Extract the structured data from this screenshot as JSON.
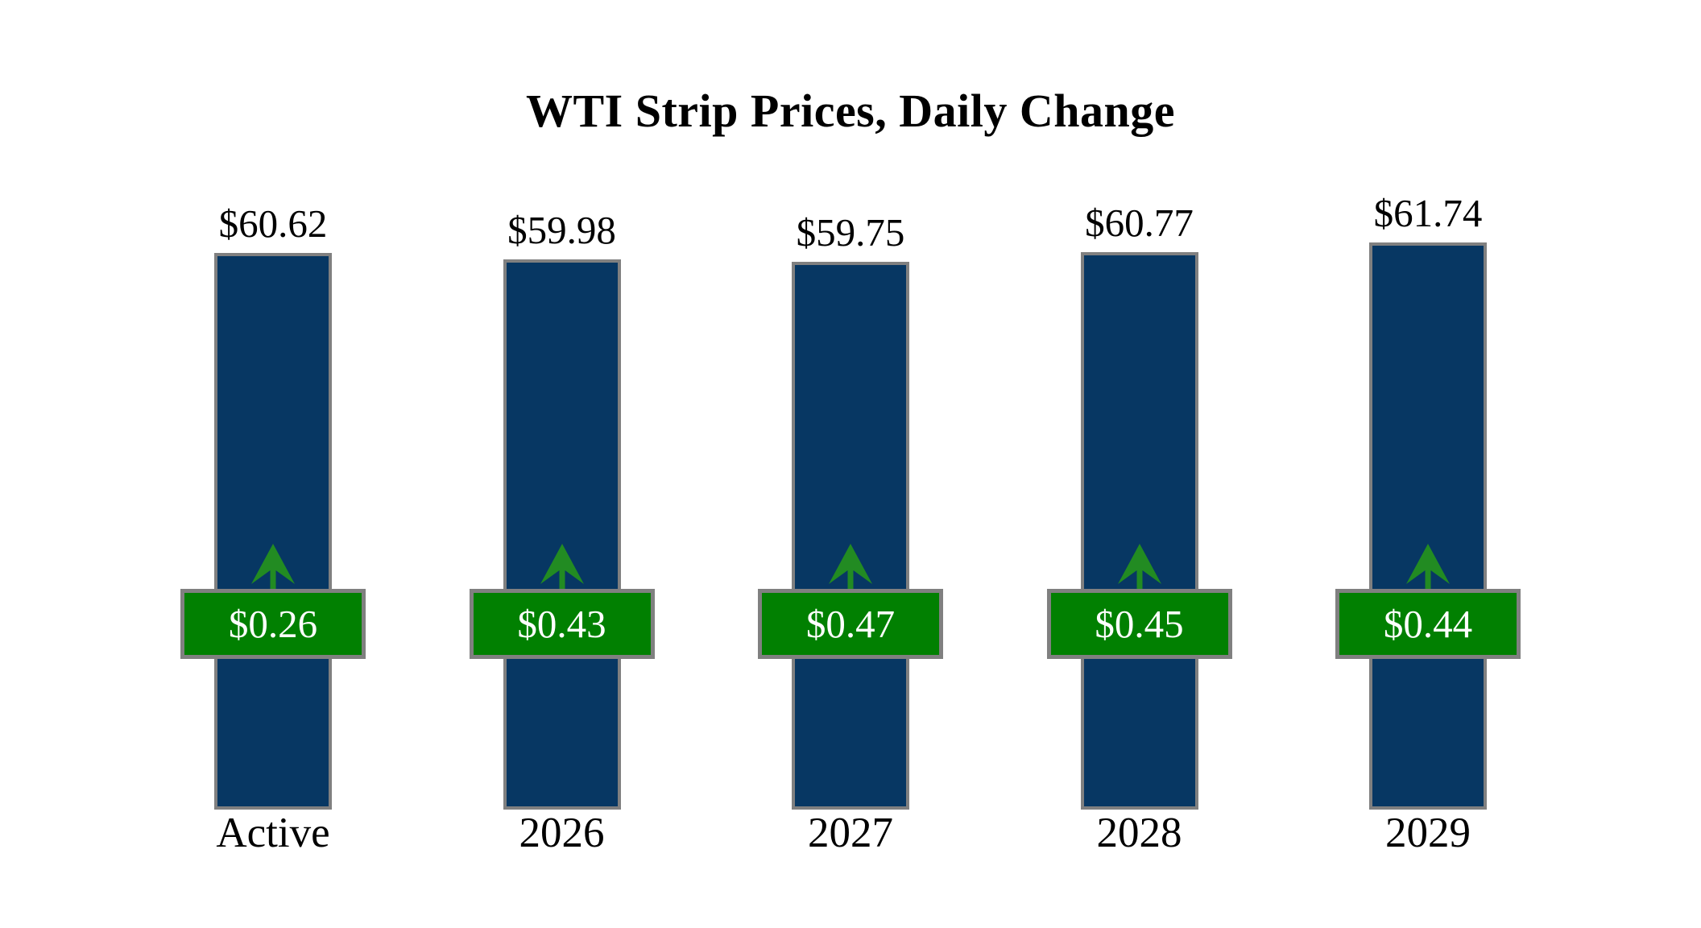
{
  "title": "WTI Strip Prices, Daily Change",
  "colors": {
    "bar": "#073763",
    "bar_border": "#808080",
    "badge_bg": "#018001",
    "badge_border": "#808080",
    "badge_text": "#ffffff",
    "arrow": "#228B22",
    "text": "#000000",
    "background": "#ffffff"
  },
  "chart_data": {
    "type": "bar",
    "title": "WTI Strip Prices, Daily Change",
    "categories": [
      "Active",
      "2026",
      "2027",
      "2028",
      "2029"
    ],
    "series": [
      {
        "name": "Strip Price",
        "values": [
          60.62,
          59.98,
          59.75,
          60.77,
          61.74
        ],
        "labels": [
          "$60.62",
          "$59.98",
          "$59.75",
          "$60.77",
          "$61.74"
        ],
        "label_position": "above-bar"
      },
      {
        "name": "Daily Change",
        "values": [
          0.26,
          0.43,
          0.47,
          0.45,
          0.44
        ],
        "labels": [
          "$0.26",
          "$0.43",
          "$0.47",
          "$0.45",
          "$0.44"
        ],
        "direction": "up",
        "marker": "green-up-arrow-badge"
      }
    ],
    "layout": {
      "orientation": "vertical",
      "grid": false,
      "legend": "none",
      "value_axis_hidden": true,
      "bars_bottom_aligned": true,
      "badge_row_aligned": true
    }
  }
}
